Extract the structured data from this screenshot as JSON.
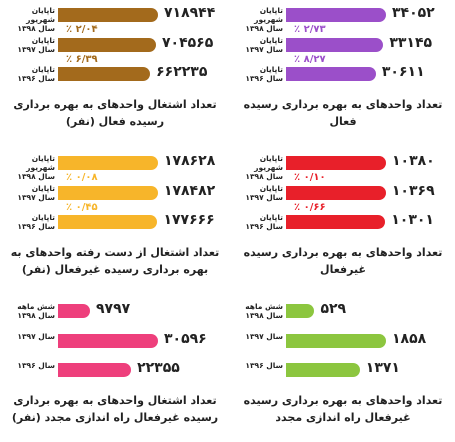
{
  "chart_data": [
    {
      "type": "bar",
      "color": "#9b4fc9",
      "title": "تعداد واحدهای به بهره برداری رسیده فعال",
      "categories": [
        "تاپایان شهریور\nسال ۱۳۹۸",
        "تاپایان\nسال ۱۳۹۷",
        "تاپایان\nسال ۱۳۹۶"
      ],
      "values": [
        34052,
        33145,
        30611
      ],
      "value_labels": [
        "۳۴۰۵۲",
        "۳۳۱۴۵",
        "۳۰۶۱۱"
      ],
      "annotations": [
        "٪ ۲/۷۳",
        "٪ ۸/۲۷"
      ]
    },
    {
      "type": "bar",
      "color": "#a36a1c",
      "title": "تعداد اشتغال واحدهای به بهره برداری رسیده فعال (نفر)",
      "categories": [
        "تاپایان شهریور\nسال ۱۳۹۸",
        "تاپایان\nسال ۱۳۹۷",
        "تاپایان\nسال ۱۳۹۶"
      ],
      "values": [
        718944,
        704565,
        662235
      ],
      "value_labels": [
        "۷۱۸۹۴۴",
        "۷۰۴۵۶۵",
        "۶۶۲۲۳۵"
      ],
      "annotations": [
        "٪ ۲/۰۴",
        "٪ ۶/۳۹"
      ]
    },
    {
      "type": "bar",
      "color": "#e8202a",
      "title": "تعداد واحدهای به بهره برداری رسیده غیرفعال",
      "categories": [
        "تاپایان شهریور\nسال ۱۳۹۸",
        "تاپایان\nسال ۱۳۹۷",
        "تاپایان\nسال ۱۳۹۶"
      ],
      "values": [
        10380,
        10369,
        10301
      ],
      "value_labels": [
        "۱۰۳۸۰",
        "۱۰۳۶۹",
        "۱۰۳۰۱"
      ],
      "annotations": [
        "٪ ۰/۱۰",
        "٪ ۰/۶۶"
      ]
    },
    {
      "type": "bar",
      "color": "#f7b52a",
      "title": "تعداد اشتغال از دست رفته واحدهای به بهره برداری رسیده غیرفعال (نفر)",
      "categories": [
        "تاپایان شهریور\nسال ۱۳۹۸",
        "تاپایان\nسال ۱۳۹۷",
        "تاپایان\nسال ۱۳۹۶"
      ],
      "values": [
        178628,
        178482,
        177666
      ],
      "value_labels": [
        "۱۷۸۶۲۸",
        "۱۷۸۴۸۲",
        "۱۷۷۶۶۶"
      ],
      "annotations": [
        "٪ ۰/۰۸",
        "٪ ۰/۴۵"
      ]
    },
    {
      "type": "bar",
      "color": "#8cc63f",
      "title": "تعداد واحدهای به بهره برداری رسیده غیرفعال راه اندازی مجدد",
      "categories": [
        "شش ماهه\nسال ۱۳۹۸",
        "سال ۱۳۹۷",
        "سال ۱۳۹۶"
      ],
      "values": [
        529,
        1858,
        1371
      ],
      "value_labels": [
        "۵۲۹",
        "۱۸۵۸",
        "۱۳۷۱"
      ]
    },
    {
      "type": "bar",
      "color": "#ee3f7c",
      "title": "تعداد اشتغال واحدهای به بهره برداری رسیده غیرفعال راه اندازی مجدد (نفر)",
      "categories": [
        "شش ماهه\nسال ۱۳۹۸",
        "سال ۱۳۹۷",
        "سال ۱۳۹۶"
      ],
      "values": [
        9797,
        30596,
        22355
      ],
      "value_labels": [
        "۹۷۹۷",
        "۳۰۵۹۶",
        "۲۲۳۵۵"
      ]
    }
  ]
}
